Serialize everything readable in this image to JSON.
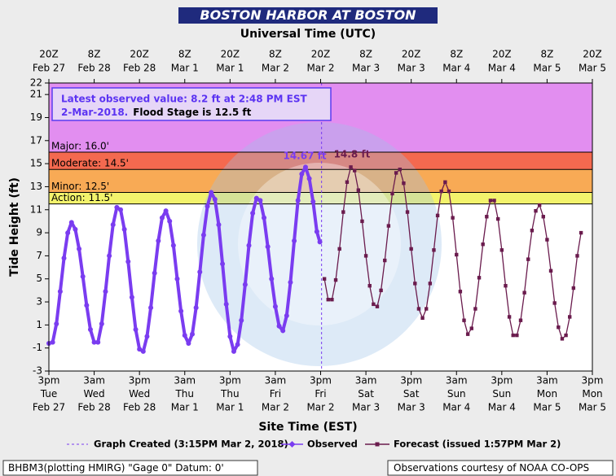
{
  "chart_data": {
    "type": "line",
    "title": "BOSTON HARBOR AT BOSTON",
    "top_axis_label": "Universal Time (UTC)",
    "x_label": "Site Time (EST)",
    "y_label": "Tide Height (ft)",
    "xlim": [
      "2018-02-27T15:00-05:00",
      "2018-03-05T15:00-05:00"
    ],
    "ylim": [
      -3,
      22
    ],
    "yticks": [
      -3,
      -1,
      1,
      3,
      5,
      7,
      9,
      11,
      13,
      15,
      17,
      19,
      21,
      22
    ],
    "xticks": [
      {
        "value": "2018-02-27T15:00-05:00",
        "label": [
          "3pm",
          "Tue",
          "Feb 27"
        ]
      },
      {
        "value": "2018-02-28T03:00-05:00",
        "label": [
          "3am",
          "Wed",
          "Feb 28"
        ]
      },
      {
        "value": "2018-02-28T15:00-05:00",
        "label": [
          "3pm",
          "Wed",
          "Feb 28"
        ]
      },
      {
        "value": "2018-03-01T03:00-05:00",
        "label": [
          "3am",
          "Thu",
          "Mar 1"
        ]
      },
      {
        "value": "2018-03-01T15:00-05:00",
        "label": [
          "3pm",
          "Thu",
          "Mar 1"
        ]
      },
      {
        "value": "2018-03-02T03:00-05:00",
        "label": [
          "3am",
          "Fri",
          "Mar 2"
        ]
      },
      {
        "value": "2018-03-02T15:00-05:00",
        "label": [
          "3pm",
          "Fri",
          "Mar 2"
        ]
      },
      {
        "value": "2018-03-03T03:00-05:00",
        "label": [
          "3am",
          "Sat",
          "Mar 3"
        ]
      },
      {
        "value": "2018-03-03T15:00-05:00",
        "label": [
          "3pm",
          "Sat",
          "Mar 3"
        ]
      },
      {
        "value": "2018-03-04T03:00-05:00",
        "label": [
          "3am",
          "Sun",
          "Mar 4"
        ]
      },
      {
        "value": "2018-03-04T15:00-05:00",
        "label": [
          "3pm",
          "Sun",
          "Mar 4"
        ]
      },
      {
        "value": "2018-03-05T03:00-05:00",
        "label": [
          "3am",
          "Mon",
          "Mar 5"
        ]
      },
      {
        "value": "2018-03-05T15:00-05:00",
        "label": [
          "3pm",
          "Mon",
          "Mar 5"
        ]
      }
    ],
    "top_xticks": [
      {
        "value": "2018-02-27T20:00Z",
        "label": [
          "20Z",
          "Feb 27"
        ]
      },
      {
        "value": "2018-02-28T08:00Z",
        "label": [
          "8Z",
          "Feb 28"
        ]
      },
      {
        "value": "2018-02-28T20:00Z",
        "label": [
          "20Z",
          "Feb 28"
        ]
      },
      {
        "value": "2018-03-01T08:00Z",
        "label": [
          "8Z",
          "Mar 1"
        ]
      },
      {
        "value": "2018-03-01T20:00Z",
        "label": [
          "20Z",
          "Mar 1"
        ]
      },
      {
        "value": "2018-03-02T08:00Z",
        "label": [
          "8Z",
          "Mar 2"
        ]
      },
      {
        "value": "2018-03-02T20:00Z",
        "label": [
          "20Z",
          "Mar 2"
        ]
      },
      {
        "value": "2018-03-03T08:00Z",
        "label": [
          "8Z",
          "Mar 3"
        ]
      },
      {
        "value": "2018-03-03T20:00Z",
        "label": [
          "20Z",
          "Mar 3"
        ]
      },
      {
        "value": "2018-03-04T08:00Z",
        "label": [
          "8Z",
          "Mar 4"
        ]
      },
      {
        "value": "2018-03-04T20:00Z",
        "label": [
          "20Z",
          "Mar 4"
        ]
      },
      {
        "value": "2018-03-05T08:00Z",
        "label": [
          "8Z",
          "Mar 5"
        ]
      },
      {
        "value": "2018-03-05T20:00Z",
        "label": [
          "20Z",
          "Mar 5"
        ]
      }
    ],
    "flood_stages": [
      {
        "label": "Major: 16.0'",
        "value": 16,
        "color": "#e28ef0"
      },
      {
        "label": "Moderate: 14.5'",
        "value": 14.5,
        "color": "#f4694f"
      },
      {
        "label": "Minor: 12.5'",
        "value": 12.5,
        "color": "#f8aa55"
      },
      {
        "label": "Action: 11.5'",
        "value": 11.5,
        "color": "#f3f36c"
      }
    ],
    "graph_created": {
      "label": "Graph Created (3:15PM Mar 2, 2018)",
      "x": "2018-03-02T15:15-05:00",
      "color": "#7a3cf0"
    },
    "info": {
      "line1": "Latest observed value: 8.2 ft at 2:48 PM EST",
      "line2a": "2-Mar-2018.",
      "line2b": "Flood Stage is 12.5 ft"
    },
    "annotations": [
      {
        "text": "14.67 ft",
        "x": "2018-03-02T10:48-05:00",
        "value": 14.67,
        "color": "#7a3cf0"
      },
      {
        "text": "14.8 ft",
        "x": "2018-03-02T23:18-05:00",
        "value": 14.8,
        "color": "#6a1b4d"
      }
    ],
    "series": [
      {
        "name": "Observed",
        "color": "#7a3cf0",
        "x": [
          "2018-02-27T15:00-05:00",
          "2018-02-27T16:00-05:00",
          "2018-02-27T17:00-05:00",
          "2018-02-27T18:00-05:00",
          "2018-02-27T19:00-05:00",
          "2018-02-27T20:00-05:00",
          "2018-02-27T21:00-05:00",
          "2018-02-27T22:00-05:00",
          "2018-02-27T23:00-05:00",
          "2018-02-28T00:00-05:00",
          "2018-02-28T01:00-05:00",
          "2018-02-28T02:00-05:00",
          "2018-02-28T03:00-05:00",
          "2018-02-28T04:00-05:00",
          "2018-02-28T05:00-05:00",
          "2018-02-28T06:00-05:00",
          "2018-02-28T07:00-05:00",
          "2018-02-28T08:00-05:00",
          "2018-02-28T09:00-05:00",
          "2018-02-28T10:00-05:00",
          "2018-02-28T11:00-05:00",
          "2018-02-28T12:00-05:00",
          "2018-02-28T13:00-05:00",
          "2018-02-28T14:00-05:00",
          "2018-02-28T15:00-05:00",
          "2018-02-28T16:00-05:00",
          "2018-02-28T17:00-05:00",
          "2018-02-28T18:00-05:00",
          "2018-02-28T19:00-05:00",
          "2018-02-28T20:00-05:00",
          "2018-02-28T21:00-05:00",
          "2018-02-28T22:00-05:00",
          "2018-02-28T23:00-05:00",
          "2018-03-01T00:00-05:00",
          "2018-03-01T01:00-05:00",
          "2018-03-01T02:00-05:00",
          "2018-03-01T03:00-05:00",
          "2018-03-01T04:00-05:00",
          "2018-03-01T05:00-05:00",
          "2018-03-01T06:00-05:00",
          "2018-03-01T07:00-05:00",
          "2018-03-01T08:00-05:00",
          "2018-03-01T09:00-05:00",
          "2018-03-01T10:00-05:00",
          "2018-03-01T11:00-05:00",
          "2018-03-01T12:00-05:00",
          "2018-03-01T13:00-05:00",
          "2018-03-01T14:00-05:00",
          "2018-03-01T15:00-05:00",
          "2018-03-01T16:00-05:00",
          "2018-03-01T17:00-05:00",
          "2018-03-01T18:00-05:00",
          "2018-03-01T19:00-05:00",
          "2018-03-01T20:00-05:00",
          "2018-03-01T21:00-05:00",
          "2018-03-01T22:00-05:00",
          "2018-03-01T23:00-05:00",
          "2018-03-02T00:00-05:00",
          "2018-03-02T01:00-05:00",
          "2018-03-02T02:00-05:00",
          "2018-03-02T03:00-05:00",
          "2018-03-02T04:00-05:00",
          "2018-03-02T05:00-05:00",
          "2018-03-02T06:00-05:00",
          "2018-03-02T07:00-05:00",
          "2018-03-02T08:00-05:00",
          "2018-03-02T09:00-05:00",
          "2018-03-02T10:00-05:00",
          "2018-03-02T11:00-05:00",
          "2018-03-02T12:00-05:00",
          "2018-03-02T13:00-05:00",
          "2018-03-02T14:00-05:00",
          "2018-03-02T14:48-05:00"
        ],
        "values": [
          -0.6,
          -0.5,
          1.1,
          3.9,
          6.8,
          9.0,
          9.9,
          9.3,
          7.6,
          5.2,
          2.7,
          0.6,
          -0.5,
          -0.5,
          1.1,
          3.9,
          7.0,
          9.7,
          11.2,
          11.0,
          9.3,
          6.5,
          3.4,
          0.6,
          -1.1,
          -1.3,
          0.0,
          2.5,
          5.5,
          8.3,
          10.3,
          10.9,
          10.0,
          7.9,
          5.0,
          2.2,
          0.1,
          -0.6,
          0.2,
          2.5,
          5.6,
          8.8,
          11.3,
          12.5,
          11.9,
          9.7,
          6.3,
          2.8,
          0.0,
          -1.3,
          -0.7,
          1.4,
          4.5,
          7.9,
          10.7,
          12.0,
          11.8,
          10.3,
          7.8,
          5.0,
          2.6,
          0.9,
          0.5,
          1.8,
          4.7,
          8.3,
          11.8,
          14.1,
          14.7,
          13.7,
          11.7,
          9.1,
          8.2
        ]
      },
      {
        "name": "Forecast (issued 1:57PM Mar 2)",
        "color": "#6a1b4d",
        "x": [
          "2018-03-02T16:00-05:00",
          "2018-03-02T17:00-05:00",
          "2018-03-02T18:00-05:00",
          "2018-03-02T19:00-05:00",
          "2018-03-02T20:00-05:00",
          "2018-03-02T21:00-05:00",
          "2018-03-02T22:00-05:00",
          "2018-03-02T23:00-05:00",
          "2018-03-03T00:00-05:00",
          "2018-03-03T01:00-05:00",
          "2018-03-03T02:00-05:00",
          "2018-03-03T03:00-05:00",
          "2018-03-03T04:00-05:00",
          "2018-03-03T05:00-05:00",
          "2018-03-03T06:00-05:00",
          "2018-03-03T07:00-05:00",
          "2018-03-03T08:00-05:00",
          "2018-03-03T09:00-05:00",
          "2018-03-03T10:00-05:00",
          "2018-03-03T11:00-05:00",
          "2018-03-03T12:00-05:00",
          "2018-03-03T13:00-05:00",
          "2018-03-03T14:00-05:00",
          "2018-03-03T15:00-05:00",
          "2018-03-03T16:00-05:00",
          "2018-03-03T17:00-05:00",
          "2018-03-03T18:00-05:00",
          "2018-03-03T19:00-05:00",
          "2018-03-03T20:00-05:00",
          "2018-03-03T21:00-05:00",
          "2018-03-03T22:00-05:00",
          "2018-03-03T23:00-05:00",
          "2018-03-04T00:00-05:00",
          "2018-03-04T01:00-05:00",
          "2018-03-04T02:00-05:00",
          "2018-03-04T03:00-05:00",
          "2018-03-04T04:00-05:00",
          "2018-03-04T05:00-05:00",
          "2018-03-04T06:00-05:00",
          "2018-03-04T07:00-05:00",
          "2018-03-04T08:00-05:00",
          "2018-03-04T09:00-05:00",
          "2018-03-04T10:00-05:00",
          "2018-03-04T11:00-05:00",
          "2018-03-04T12:00-05:00",
          "2018-03-04T13:00-05:00",
          "2018-03-04T14:00-05:00",
          "2018-03-04T15:00-05:00",
          "2018-03-04T16:00-05:00",
          "2018-03-04T17:00-05:00",
          "2018-03-04T18:00-05:00",
          "2018-03-04T19:00-05:00",
          "2018-03-04T20:00-05:00",
          "2018-03-04T21:00-05:00",
          "2018-03-04T22:00-05:00",
          "2018-03-04T23:00-05:00",
          "2018-03-05T00:00-05:00",
          "2018-03-05T01:00-05:00",
          "2018-03-05T02:00-05:00",
          "2018-03-05T03:00-05:00",
          "2018-03-05T04:00-05:00",
          "2018-03-05T05:00-05:00",
          "2018-03-05T06:00-05:00",
          "2018-03-05T07:00-05:00",
          "2018-03-05T08:00-05:00",
          "2018-03-05T09:00-05:00",
          "2018-03-05T10:00-05:00",
          "2018-03-05T11:00-05:00",
          "2018-03-05T12:00-05:00"
        ],
        "values": [
          5.0,
          3.2,
          3.2,
          4.9,
          7.6,
          10.8,
          13.4,
          14.7,
          14.4,
          12.7,
          10.0,
          7.0,
          4.4,
          2.8,
          2.6,
          4.0,
          6.6,
          9.6,
          12.4,
          14.2,
          14.5,
          13.3,
          10.8,
          7.6,
          4.6,
          2.4,
          1.6,
          2.4,
          4.6,
          7.5,
          10.5,
          12.6,
          13.4,
          12.6,
          10.3,
          7.1,
          3.9,
          1.4,
          0.2,
          0.7,
          2.4,
          5.1,
          8.0,
          10.4,
          11.8,
          11.8,
          10.2,
          7.5,
          4.4,
          1.7,
          0.1,
          0.1,
          1.4,
          3.8,
          6.7,
          9.2,
          10.9,
          11.4,
          10.4,
          8.4,
          5.7,
          2.9,
          0.8,
          -0.2,
          0.1,
          1.7,
          4.2,
          7.0,
          9.0
        ]
      }
    ],
    "footer_left": "BHBM3(plotting HMIRG) \"Gage 0\" Datum: 0'",
    "footer_right": "Observations courtesy of NOAA CO-OPS"
  }
}
